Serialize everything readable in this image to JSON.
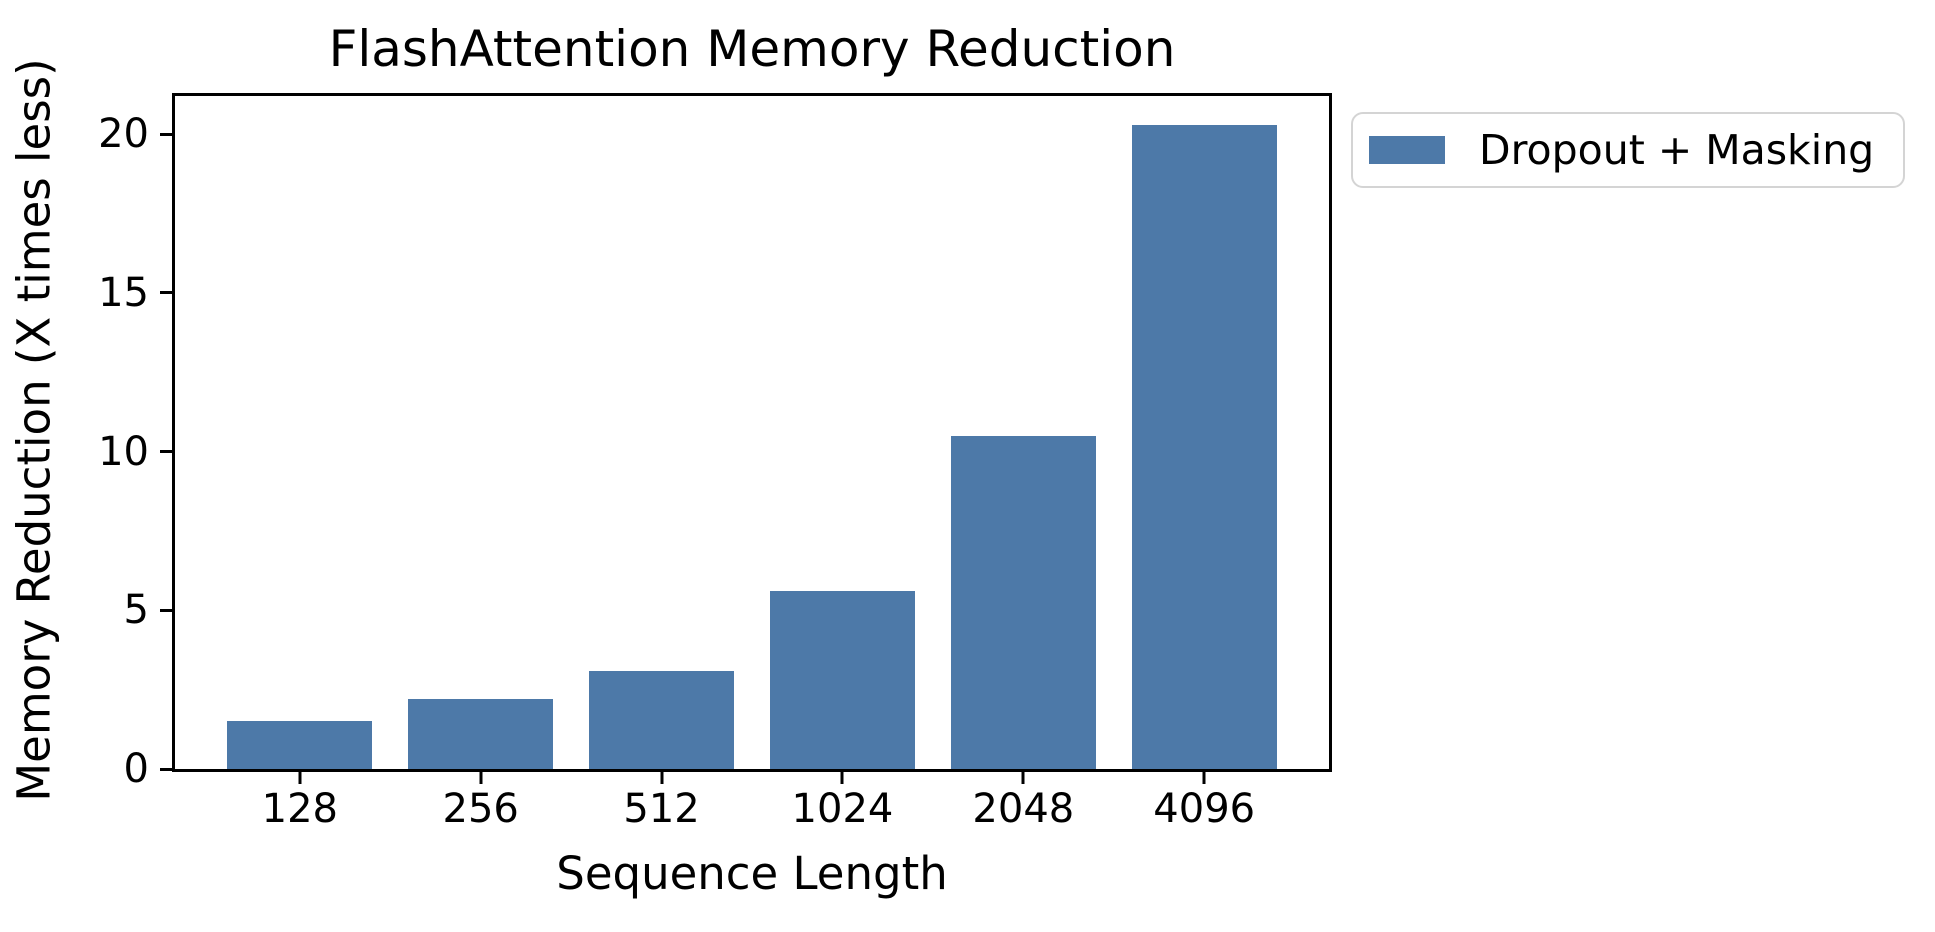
{
  "chart_data": {
    "type": "bar",
    "title": "FlashAttention Memory Reduction",
    "xlabel": "Sequence Length",
    "ylabel": "Memory Reduction (X times less)",
    "categories": [
      "128",
      "256",
      "512",
      "1024",
      "2048",
      "4096"
    ],
    "values": [
      1.5,
      2.2,
      3.1,
      5.6,
      10.5,
      20.3
    ],
    "yticks": [
      0,
      5,
      10,
      15,
      20
    ],
    "ylim": [
      0,
      21.2
    ],
    "bar_color": "#4d79a8",
    "axis_color": "#000000",
    "grid": false,
    "legend": {
      "position": "outside-upper-right",
      "entries": [
        {
          "label": "Dropout + Masking",
          "color": "#4d79a8"
        }
      ]
    }
  }
}
